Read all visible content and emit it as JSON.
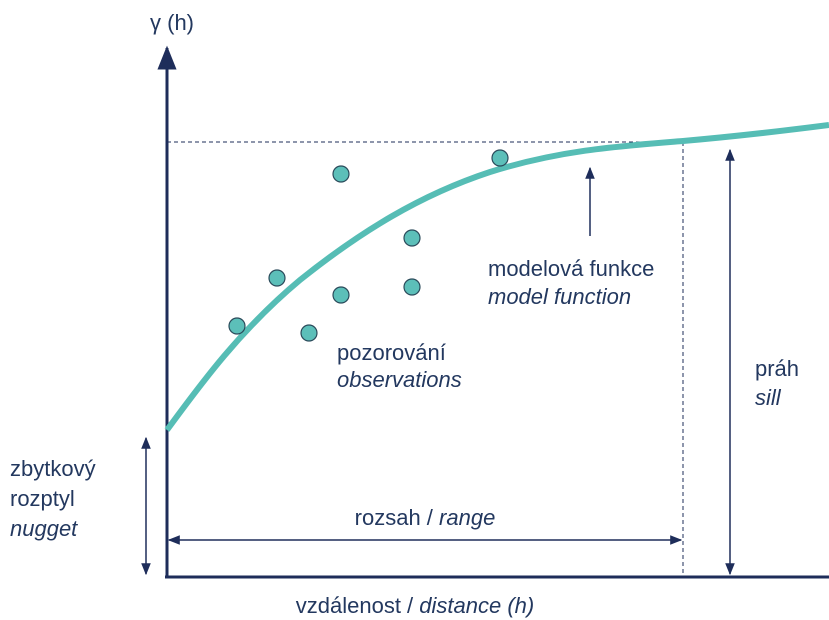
{
  "y_axis_label": "γ (h)",
  "x_axis_label": [
    "vzdálenost /",
    "distance (h)"
  ],
  "model_function": [
    "modelová funkce",
    "model function"
  ],
  "observations": [
    "pozorování",
    "observations"
  ],
  "sill": [
    "práh",
    "sill"
  ],
  "nugget": [
    "zbytkový",
    "rozptyl",
    "nugget"
  ],
  "range": [
    "rozsah /",
    "range"
  ]
}
